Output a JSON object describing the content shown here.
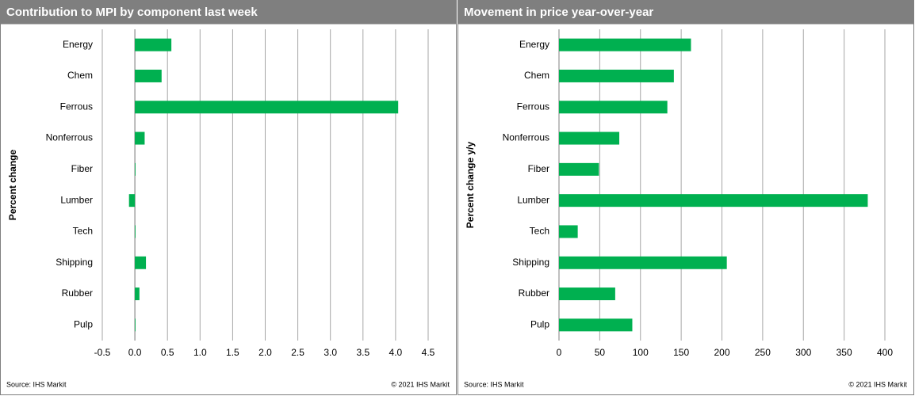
{
  "chart_data": [
    {
      "type": "barh",
      "title": "Contribution to MPI by component last week",
      "ylabel": "Percent change",
      "categories": [
        "Energy",
        "Chem",
        "Ferrous",
        "Nonferrous",
        "Fiber",
        "Lumber",
        "Tech",
        "Shipping",
        "Rubber",
        "Pulp"
      ],
      "values": [
        0.56,
        0.41,
        4.04,
        0.15,
        0.01,
        -0.09,
        0.01,
        0.17,
        0.07,
        0.01
      ],
      "color": "#00b050",
      "xlim": [
        -0.5,
        4.5
      ],
      "xticks": [
        -0.5,
        {
          "value": 0,
          "label": "0.0"
        },
        0.5,
        {
          "value": 1,
          "label": "1.0"
        },
        1.5,
        {
          "value": 2,
          "label": "2.0"
        },
        2.5,
        {
          "value": 3,
          "label": "3.0"
        },
        3.5,
        {
          "value": 4,
          "label": "4.0"
        },
        4.5
      ],
      "grid": true,
      "source": "Source:  IHS Markit",
      "copyright": "© 2021  IHS Markit"
    },
    {
      "type": "barh",
      "title": "Movement in price year-over-year",
      "ylabel": "Percent change y/y",
      "categories": [
        "Energy",
        "Chem",
        "Ferrous",
        "Nonferrous",
        "Fiber",
        "Lumber",
        "Tech",
        "Shipping",
        "Rubber",
        "Pulp"
      ],
      "values": [
        162,
        141,
        133,
        74,
        49,
        379,
        23,
        206,
        69,
        90
      ],
      "color": "#00b050",
      "xlim": [
        0,
        400
      ],
      "xticks": [
        0,
        50,
        100,
        150,
        200,
        250,
        300,
        350,
        400
      ],
      "grid": true,
      "source": "Source:  IHS Markit",
      "copyright": "© 2021  IHS Markit"
    }
  ]
}
